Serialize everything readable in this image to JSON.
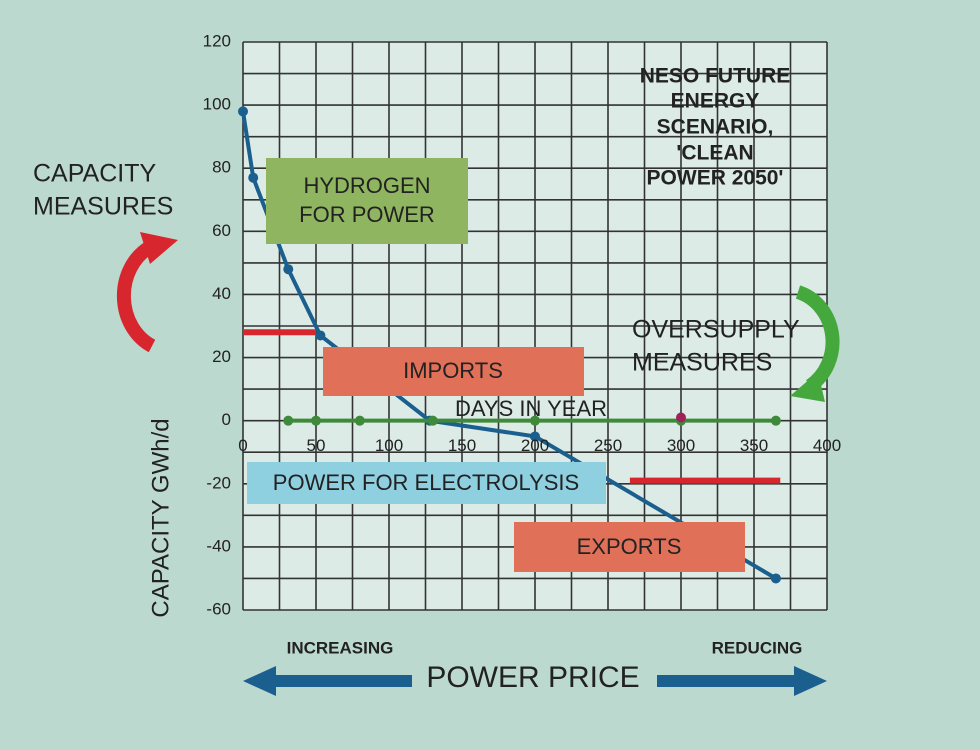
{
  "chart_data": {
    "type": "line",
    "title": [
      "NESO FUTURE",
      "ENERGY",
      "SCENARIO,",
      "'CLEAN",
      "POWER 2050'"
    ],
    "x_label": "DAYS IN YEAR",
    "y_label": "CAPACITY GWh/d",
    "xlim": [
      0,
      400
    ],
    "ylim": [
      -60,
      120
    ],
    "xticks": [
      0,
      50,
      100,
      150,
      200,
      250,
      300,
      350,
      400
    ],
    "yticks": [
      -60,
      -40,
      -20,
      0,
      20,
      40,
      60,
      80,
      100,
      120
    ],
    "x_minor_grid": [
      25,
      75,
      125,
      175,
      225,
      275,
      325,
      375
    ],
    "y_minor_grid": [
      -50,
      -30,
      -10,
      10,
      30,
      50,
      70,
      90,
      110
    ],
    "series": [
      {
        "color": "#1a5f8e",
        "x": [
          0,
          7,
          31,
          53,
          128,
          200,
          365
        ],
        "values": [
          98,
          77,
          48,
          27,
          0,
          -5,
          -50
        ]
      },
      {
        "color": "#3e8a3a",
        "x": [
          31,
          50,
          80,
          130,
          200,
          300,
          365
        ],
        "values": [
          0,
          0,
          0,
          0,
          0,
          0,
          0
        ]
      },
      {
        "color": "#a0205a",
        "x": [
          300
        ],
        "values": [
          1
        ]
      },
      {
        "color": "#d8262e",
        "x": [
          0,
          50
        ],
        "values": [
          28,
          28
        ]
      },
      {
        "color": "#d8262e",
        "x": [
          265,
          368
        ],
        "values": [
          -19,
          -19
        ]
      }
    ],
    "annotations": {
      "hydrogen": [
        "HYDROGEN",
        "FOR POWER"
      ],
      "imports": "IMPORTS",
      "electrolysis": "POWER FOR ELECTROLYSIS",
      "exports": "EXPORTS",
      "capacity_measures": [
        "CAPACITY",
        "MEASURES"
      ],
      "oversupply_measures": [
        "OVERSUPPLY",
        "MEASURES"
      ],
      "power_price": "POWER PRICE",
      "increasing": "INCREASING",
      "reducing": "REDUCING"
    }
  }
}
